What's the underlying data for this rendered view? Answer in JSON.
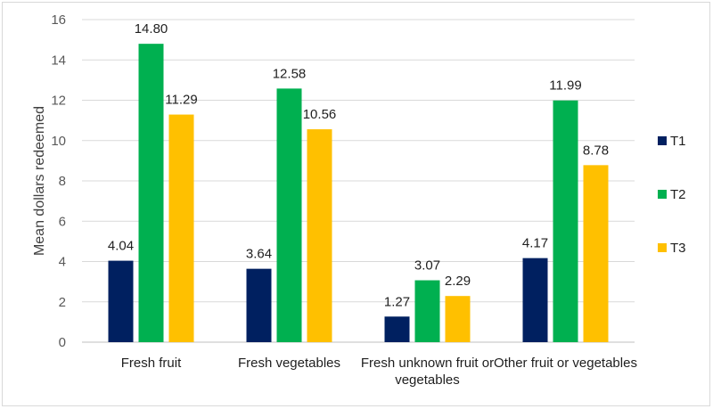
{
  "chart_data": {
    "type": "bar",
    "title": "",
    "xlabel": "",
    "ylabel": "Mean dollars redeemed",
    "ylim": [
      0,
      16
    ],
    "yticks": [
      0,
      2,
      4,
      6,
      8,
      10,
      12,
      14,
      16
    ],
    "grid": true,
    "legend_position": "right",
    "categories": [
      [
        "Fresh fruit"
      ],
      [
        "Fresh vegetables"
      ],
      [
        "Fresh unknown fruit or",
        "vegetables"
      ],
      [
        "Other fruit or vegetables"
      ]
    ],
    "series": [
      {
        "name": "T1",
        "color": "#002060",
        "values": [
          4.04,
          3.64,
          1.27,
          4.17
        ],
        "labels": [
          "4.04",
          "3.64",
          "1.27",
          "4.17"
        ]
      },
      {
        "name": "T2",
        "color": "#00b050",
        "values": [
          14.8,
          12.58,
          3.07,
          11.99
        ],
        "labels": [
          "14.80",
          "12.58",
          "3.07",
          "11.99"
        ]
      },
      {
        "name": "T3",
        "color": "#ffc000",
        "values": [
          11.29,
          10.56,
          2.29,
          8.78
        ],
        "labels": [
          "11.29",
          "10.56",
          "2.29",
          "8.78"
        ]
      }
    ]
  }
}
